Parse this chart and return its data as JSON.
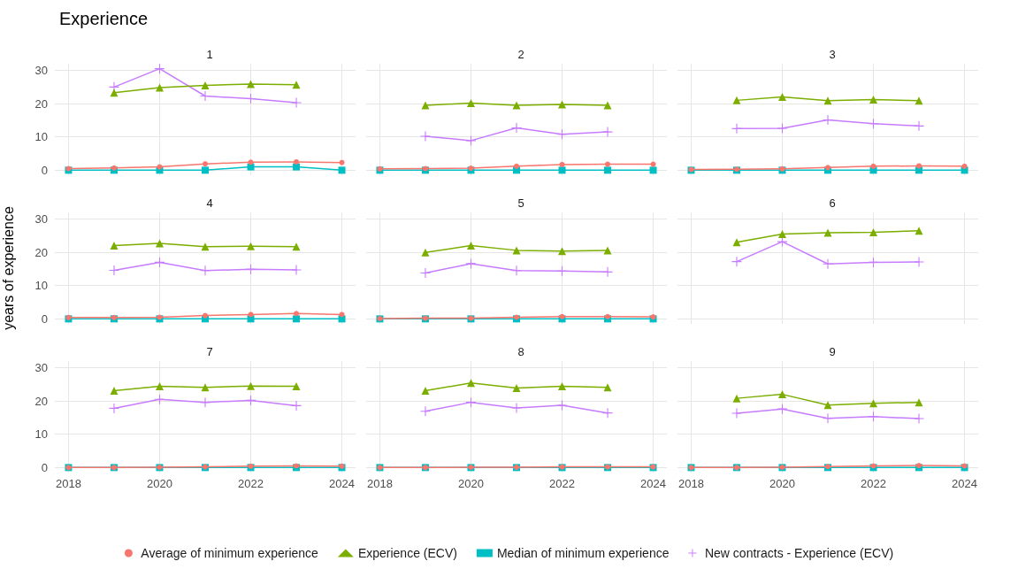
{
  "chart_data": [
    {
      "type": "line",
      "title": "Experience",
      "subtitle": "1",
      "legend": "bottom",
      "grid": true,
      "tick_labels": "y",
      "xlim": [
        2017.7,
        2024.3
      ],
      "xticks": [
        2018,
        2020,
        2022,
        2024
      ],
      "ylim": [
        -1.5,
        32
      ],
      "yticks": [
        0,
        10,
        20,
        30
      ],
      "series": [
        {
          "name": "Average of minimum experience",
          "color": "#f8766d",
          "marker": "circle",
          "x": [
            2018,
            2019,
            2020,
            2021,
            2022,
            2023,
            2024
          ],
          "values": [
            0.5,
            0.7,
            1.0,
            1.9,
            2.4,
            2.5,
            2.3
          ]
        },
        {
          "name": "Experience (ECV)",
          "color": "#7cae00",
          "marker": "triangle",
          "x": [
            2019,
            2020,
            2021,
            2022,
            2023
          ],
          "values": [
            23.3,
            24.8,
            25.5,
            25.9,
            25.7
          ]
        },
        {
          "name": "Median of minimum experience",
          "color": "#00bfc4",
          "marker": "square",
          "x": [
            2018,
            2019,
            2020,
            2021,
            2022,
            2023,
            2024
          ],
          "values": [
            0,
            0,
            0,
            0,
            1,
            1,
            0
          ]
        },
        {
          "name": "New contracts - Experience (ECV)",
          "color": "#c77cff",
          "marker": "cross",
          "x": [
            2019,
            2020,
            2021,
            2022,
            2023
          ],
          "values": [
            25,
            30.5,
            22.3,
            21.5,
            20.3
          ]
        }
      ]
    },
    {
      "type": "line",
      "title": "2",
      "grid": true,
      "tick_labels": false,
      "xlim": [
        2017.7,
        2024.3
      ],
      "xticks": [
        2018,
        2020,
        2022,
        2024
      ],
      "ylim": [
        -1.5,
        32
      ],
      "yticks": [
        0,
        10,
        20,
        30
      ],
      "series": [
        {
          "color": "#f8766d",
          "marker": "circle",
          "x": [
            2018,
            2019,
            2020,
            2021,
            2022,
            2023,
            2024
          ],
          "values": [
            0.4,
            0.5,
            0.6,
            1.2,
            1.7,
            1.8,
            1.8
          ]
        },
        {
          "color": "#7cae00",
          "marker": "triangle",
          "x": [
            2019,
            2020,
            2021,
            2022,
            2023
          ],
          "values": [
            19.5,
            20.2,
            19.5,
            19.8,
            19.5
          ]
        },
        {
          "color": "#00bfc4",
          "marker": "square",
          "x": [
            2018,
            2019,
            2020,
            2021,
            2022,
            2023,
            2024
          ],
          "values": [
            0,
            0,
            0,
            0,
            0,
            0,
            0
          ]
        },
        {
          "color": "#c77cff",
          "marker": "cross",
          "x": [
            2019,
            2020,
            2021,
            2022,
            2023
          ],
          "values": [
            10.2,
            8.9,
            12.7,
            10.8,
            11.5
          ]
        }
      ]
    },
    {
      "type": "line",
      "title": "3",
      "grid": true,
      "tick_labels": false,
      "xlim": [
        2017.7,
        2024.3
      ],
      "xticks": [
        2018,
        2020,
        2022,
        2024
      ],
      "ylim": [
        -1.5,
        32
      ],
      "yticks": [
        0,
        10,
        20,
        30
      ],
      "series": [
        {
          "color": "#f8766d",
          "marker": "circle",
          "x": [
            2018,
            2019,
            2020,
            2021,
            2022,
            2023,
            2024
          ],
          "values": [
            0.2,
            0.3,
            0.4,
            0.8,
            1.2,
            1.3,
            1.2
          ]
        },
        {
          "color": "#7cae00",
          "marker": "triangle",
          "x": [
            2019,
            2020,
            2021,
            2022,
            2023
          ],
          "values": [
            21,
            22,
            20.9,
            21.2,
            20.9
          ]
        },
        {
          "color": "#00bfc4",
          "marker": "square",
          "x": [
            2018,
            2019,
            2020,
            2021,
            2022,
            2023,
            2024
          ],
          "values": [
            0,
            0,
            0,
            0,
            0,
            0,
            0
          ]
        },
        {
          "color": "#c77cff",
          "marker": "cross",
          "x": [
            2019,
            2020,
            2021,
            2022,
            2023
          ],
          "values": [
            12.5,
            12.6,
            15.1,
            14,
            13.3
          ]
        }
      ]
    },
    {
      "type": "line",
      "title": "4",
      "ylabel": "years of experience",
      "grid": true,
      "tick_labels": "y",
      "xlim": [
        2017.7,
        2024.3
      ],
      "xticks": [
        2018,
        2020,
        2022,
        2024
      ],
      "ylim": [
        -1.5,
        32
      ],
      "yticks": [
        0,
        10,
        20,
        30
      ],
      "series": [
        {
          "color": "#f8766d",
          "marker": "circle",
          "x": [
            2018,
            2019,
            2020,
            2021,
            2022,
            2023,
            2024
          ],
          "values": [
            0.4,
            0.4,
            0.5,
            1.0,
            1.3,
            1.6,
            1.3
          ]
        },
        {
          "color": "#7cae00",
          "marker": "triangle",
          "x": [
            2019,
            2020,
            2021,
            2022,
            2023
          ],
          "values": [
            22,
            22.7,
            21.7,
            21.8,
            21.7
          ]
        },
        {
          "color": "#00bfc4",
          "marker": "square",
          "x": [
            2018,
            2019,
            2020,
            2021,
            2022,
            2023,
            2024
          ],
          "values": [
            0,
            0,
            0,
            0,
            0,
            0,
            0
          ]
        },
        {
          "color": "#c77cff",
          "marker": "cross",
          "x": [
            2019,
            2020,
            2021,
            2022,
            2023
          ],
          "values": [
            14.6,
            17,
            14.5,
            14.9,
            14.7
          ]
        }
      ]
    },
    {
      "type": "line",
      "title": "5",
      "grid": true,
      "tick_labels": false,
      "xlim": [
        2017.7,
        2024.3
      ],
      "xticks": [
        2018,
        2020,
        2022,
        2024
      ],
      "ylim": [
        -1.5,
        32
      ],
      "yticks": [
        0,
        10,
        20,
        30
      ],
      "series": [
        {
          "color": "#f8766d",
          "marker": "circle",
          "x": [
            2018,
            2019,
            2020,
            2021,
            2022,
            2023,
            2024
          ],
          "values": [
            0.1,
            0.2,
            0.2,
            0.5,
            0.7,
            0.7,
            0.6
          ]
        },
        {
          "color": "#7cae00",
          "marker": "triangle",
          "x": [
            2019,
            2020,
            2021,
            2022,
            2023
          ],
          "values": [
            20,
            22,
            20.6,
            20.4,
            20.6
          ]
        },
        {
          "color": "#00bfc4",
          "marker": "square",
          "x": [
            2018,
            2019,
            2020,
            2021,
            2022,
            2023,
            2024
          ],
          "values": [
            0,
            0,
            0,
            0,
            0,
            0,
            0
          ]
        },
        {
          "color": "#c77cff",
          "marker": "cross",
          "x": [
            2019,
            2020,
            2021,
            2022,
            2023
          ],
          "values": [
            13.8,
            16.6,
            14.5,
            14.4,
            14.1
          ]
        }
      ]
    },
    {
      "type": "line",
      "title": "6",
      "grid": true,
      "tick_labels": false,
      "xlim": [
        2017.7,
        2024.3
      ],
      "xticks": [
        2018,
        2020,
        2022,
        2024
      ],
      "ylim": [
        -1.5,
        32
      ],
      "yticks": [
        0,
        10,
        20,
        30
      ],
      "series": [
        {
          "color": "#7cae00",
          "marker": "triangle",
          "x": [
            2019,
            2020,
            2021,
            2022,
            2023
          ],
          "values": [
            23,
            25.5,
            25.9,
            26,
            26.5
          ]
        },
        {
          "color": "#c77cff",
          "marker": "cross",
          "x": [
            2019,
            2020,
            2021,
            2022,
            2023
          ],
          "values": [
            17.2,
            23.2,
            16.5,
            17,
            17.1
          ]
        }
      ]
    },
    {
      "type": "line",
      "title": "7",
      "grid": true,
      "xlim": [
        2017.7,
        2024.3
      ],
      "xticks": [
        2018,
        2020,
        2022,
        2024
      ],
      "ylim": [
        -1.5,
        32
      ],
      "yticks": [
        0,
        10,
        20,
        30
      ],
      "series": [
        {
          "color": "#f8766d",
          "marker": "circle",
          "x": [
            2018,
            2019,
            2020,
            2021,
            2022,
            2023,
            2024
          ],
          "values": [
            0,
            0,
            0.1,
            0.2,
            0.4,
            0.5,
            0.4
          ]
        },
        {
          "color": "#7cae00",
          "marker": "triangle",
          "x": [
            2019,
            2020,
            2021,
            2022,
            2023
          ],
          "values": [
            23.1,
            24.4,
            24.1,
            24.5,
            24.4
          ]
        },
        {
          "color": "#00bfc4",
          "marker": "square",
          "x": [
            2018,
            2019,
            2020,
            2021,
            2022,
            2023,
            2024
          ],
          "values": [
            0,
            0,
            0,
            0,
            0,
            0,
            0
          ]
        },
        {
          "color": "#c77cff",
          "marker": "cross",
          "x": [
            2019,
            2020,
            2021,
            2022,
            2023
          ],
          "values": [
            17.8,
            20.5,
            19.6,
            20.2,
            18.6
          ]
        }
      ]
    },
    {
      "type": "line",
      "title": "8",
      "grid": true,
      "tick_labels": "x",
      "xlim": [
        2017.7,
        2024.3
      ],
      "xticks": [
        2018,
        2020,
        2022,
        2024
      ],
      "ylim": [
        -1.5,
        32
      ],
      "yticks": [
        0,
        10,
        20,
        30
      ],
      "series": [
        {
          "color": "#f8766d",
          "marker": "circle",
          "x": [
            2018,
            2019,
            2020,
            2021,
            2022,
            2023,
            2024
          ],
          "values": [
            0,
            0,
            0.1,
            0.1,
            0.2,
            0.2,
            0.2
          ]
        },
        {
          "color": "#7cae00",
          "marker": "triangle",
          "x": [
            2019,
            2020,
            2021,
            2022,
            2023
          ],
          "values": [
            23.1,
            25.4,
            23.9,
            24.4,
            24.1
          ]
        },
        {
          "color": "#00bfc4",
          "marker": "square",
          "x": [
            2018,
            2019,
            2020,
            2021,
            2022,
            2023,
            2024
          ],
          "values": [
            0,
            0,
            0,
            0,
            0,
            0,
            0
          ]
        },
        {
          "color": "#c77cff",
          "marker": "cross",
          "x": [
            2019,
            2020,
            2021,
            2022,
            2023
          ],
          "values": [
            16.9,
            19.6,
            17.9,
            18.7,
            16.4
          ]
        }
      ]
    },
    {
      "type": "line",
      "title": "9",
      "grid": true,
      "tick_labels": "x",
      "xlim": [
        2017.7,
        2024.3
      ],
      "xticks": [
        2018,
        2020,
        2022,
        2024
      ],
      "ylim": [
        -1.5,
        32
      ],
      "yticks": [
        0,
        10,
        20,
        30
      ],
      "series": [
        {
          "color": "#f8766d",
          "marker": "circle",
          "x": [
            2018,
            2019,
            2020,
            2021,
            2022,
            2023,
            2024
          ],
          "values": [
            0,
            0,
            0.1,
            0.3,
            0.5,
            0.6,
            0.5
          ]
        },
        {
          "color": "#7cae00",
          "marker": "triangle",
          "x": [
            2019,
            2020,
            2021,
            2022,
            2023
          ],
          "values": [
            20.8,
            22,
            18.8,
            19.3,
            19.6
          ]
        },
        {
          "color": "#00bfc4",
          "marker": "square",
          "x": [
            2018,
            2019,
            2020,
            2021,
            2022,
            2023,
            2024
          ],
          "values": [
            0,
            0,
            0,
            0,
            0,
            0,
            0
          ]
        },
        {
          "color": "#c77cff",
          "marker": "cross",
          "x": [
            2019,
            2020,
            2021,
            2022,
            2023
          ],
          "values": [
            16.3,
            17.6,
            14.8,
            15.3,
            14.7
          ]
        }
      ]
    }
  ]
}
